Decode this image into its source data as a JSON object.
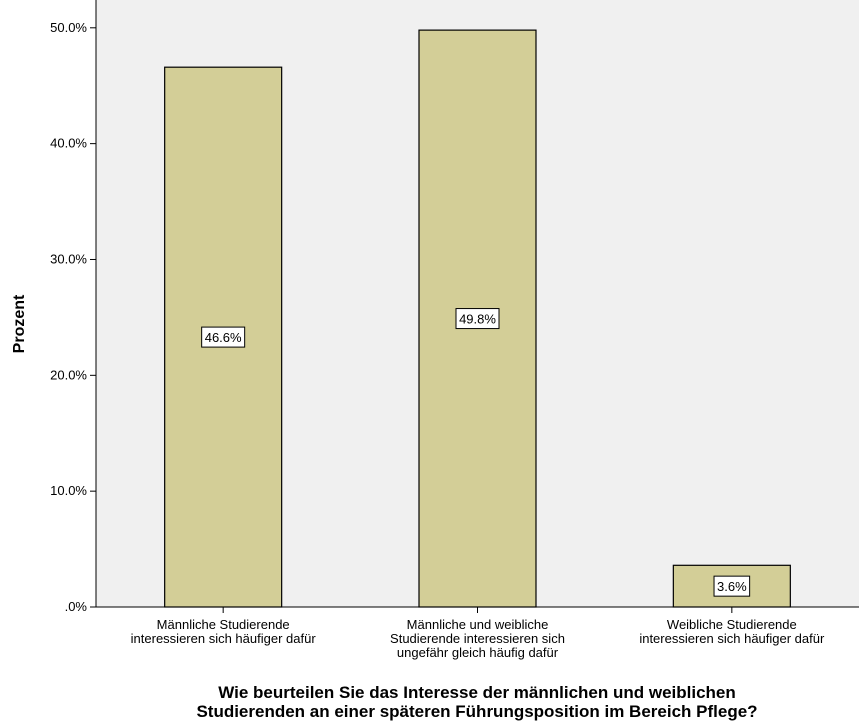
{
  "chart_data": {
    "type": "bar",
    "categories": [
      [
        "Männliche Studierende",
        "interessieren sich häufiger dafür"
      ],
      [
        "Männliche und weibliche",
        "Studierende  interessieren sich",
        "ungefähr gleich häufig dafür"
      ],
      [
        "Weibliche Studierende",
        "interessieren sich häufiger dafür"
      ]
    ],
    "values": [
      46.6,
      49.8,
      3.6
    ],
    "data_labels": [
      "46.6%",
      "49.8%",
      "3.6%"
    ],
    "ylabel": "Prozent",
    "xlabel": [
      "Wie beurteilen Sie das Interesse der männlichen und weiblichen",
      "Studierenden an einer späteren Führungsposition im Bereich Pflege?"
    ],
    "ylim": [
      0,
      50
    ],
    "yticks": [
      0,
      10,
      20,
      30,
      40,
      50
    ],
    "ytick_labels": [
      ".0%",
      "10.0%",
      "20.0%",
      "30.0%",
      "40.0%",
      "50.0%"
    ],
    "grid": false,
    "legend": "none",
    "colors": {
      "plot_background": "#f0f0f0",
      "bar_fill": "#d3ce97",
      "bar_stroke": "#000000"
    }
  }
}
